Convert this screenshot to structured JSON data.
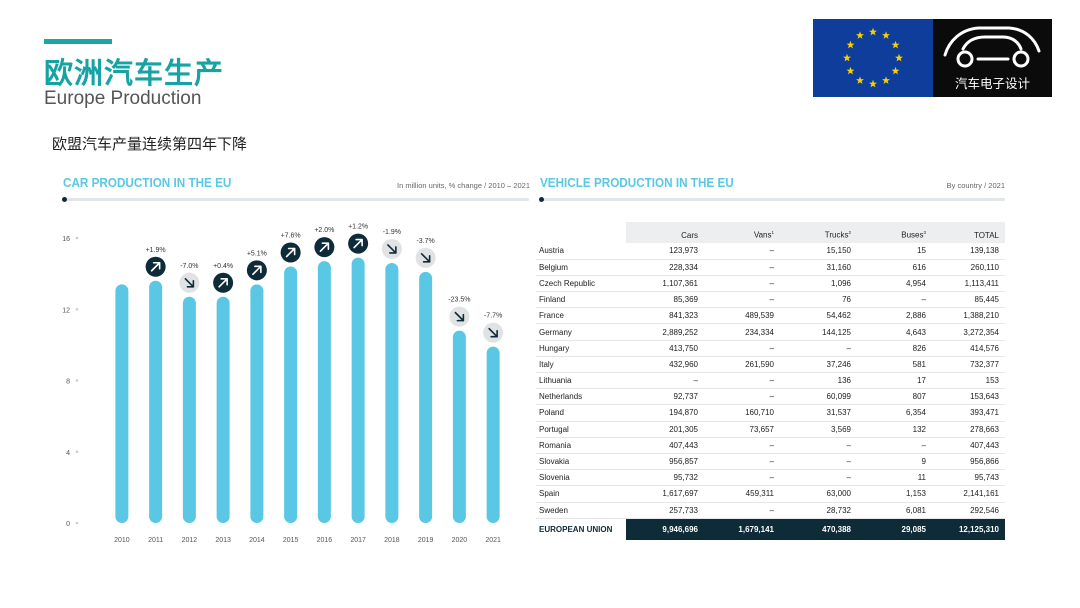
{
  "header": {
    "title_cn": "欧洲汽车生产",
    "title_en": "Europe Production",
    "subtitle_cn": "欧盟汽车产量连续第四年下降"
  },
  "logo": {
    "brand_text": "汽车电子设计",
    "colors": {
      "eu_blue": "#0f3d9c",
      "eu_star": "#f7d000",
      "brand_bg": "#0b0b0b"
    }
  },
  "colors": {
    "accent": "#17a3a3",
    "bar": "#5ac8e4",
    "dark": "#0e2b38",
    "neutral_badge": "#e0e2e4"
  },
  "chart_data": [
    {
      "type": "bar",
      "title": "CAR PRODUCTION IN THE EU",
      "subtitle": "In million units, % change / 2010 – 2021",
      "categories": [
        "2010",
        "2011",
        "2012",
        "2013",
        "2014",
        "2015",
        "2016",
        "2017",
        "2018",
        "2019",
        "2020",
        "2021"
      ],
      "values": [
        13.4,
        13.6,
        12.7,
        12.7,
        13.4,
        14.4,
        14.7,
        14.9,
        14.6,
        14.1,
        10.8,
        9.9
      ],
      "changes": [
        "",
        "+1.9%",
        "-7.0%",
        "+0.4%",
        "+5.1%",
        "+7.6%",
        "+2.0%",
        "+1.2%",
        "-1.9%",
        "-3.7%",
        "-23.5%",
        "-7.7%"
      ],
      "direction": [
        "",
        "up",
        "down",
        "up",
        "up",
        "up",
        "up",
        "up",
        "down",
        "down",
        "down",
        "down"
      ],
      "yticks": [
        0,
        4,
        8,
        12,
        16
      ],
      "ylim": [
        0,
        16
      ],
      "grid": false
    },
    {
      "type": "table",
      "title": "VEHICLE PRODUCTION IN THE EU",
      "subtitle": "By country / 2021",
      "columns": [
        "Cars",
        "Vans",
        "Trucks",
        "Buses",
        "TOTAL"
      ],
      "column_notes": [
        "",
        "1",
        "2",
        "3",
        ""
      ],
      "rows": [
        {
          "country": "Austria",
          "values": [
            "123,973",
            "–",
            "15,150",
            "15",
            "139,138"
          ]
        },
        {
          "country": "Belgium",
          "values": [
            "228,334",
            "–",
            "31,160",
            "616",
            "260,110"
          ]
        },
        {
          "country": "Czech Republic",
          "values": [
            "1,107,361",
            "–",
            "1,096",
            "4,954",
            "1,113,411"
          ]
        },
        {
          "country": "Finland",
          "values": [
            "85,369",
            "–",
            "76",
            "–",
            "85,445"
          ]
        },
        {
          "country": "France",
          "values": [
            "841,323",
            "489,539",
            "54,462",
            "2,886",
            "1,388,210"
          ]
        },
        {
          "country": "Germany",
          "values": [
            "2,889,252",
            "234,334",
            "144,125",
            "4,643",
            "3,272,354"
          ]
        },
        {
          "country": "Hungary",
          "values": [
            "413,750",
            "–",
            "–",
            "826",
            "414,576"
          ]
        },
        {
          "country": "Italy",
          "values": [
            "432,960",
            "261,590",
            "37,246",
            "581",
            "732,377"
          ]
        },
        {
          "country": "Lithuania",
          "values": [
            "–",
            "–",
            "136",
            "17",
            "153"
          ]
        },
        {
          "country": "Netherlands",
          "values": [
            "92,737",
            "–",
            "60,099",
            "807",
            "153,643"
          ]
        },
        {
          "country": "Poland",
          "values": [
            "194,870",
            "160,710",
            "31,537",
            "6,354",
            "393,471"
          ]
        },
        {
          "country": "Portugal",
          "values": [
            "201,305",
            "73,657",
            "3,569",
            "132",
            "278,663"
          ]
        },
        {
          "country": "Romania",
          "values": [
            "407,443",
            "–",
            "–",
            "–",
            "407,443"
          ]
        },
        {
          "country": "Slovakia",
          "values": [
            "956,857",
            "–",
            "–",
            "9",
            "956,866"
          ]
        },
        {
          "country": "Slovenia",
          "values": [
            "95,732",
            "–",
            "–",
            "11",
            "95,743"
          ]
        },
        {
          "country": "Spain",
          "values": [
            "1,617,697",
            "459,311",
            "63,000",
            "1,153",
            "2,141,161"
          ]
        },
        {
          "country": "Sweden",
          "values": [
            "257,733",
            "–",
            "28,732",
            "6,081",
            "292,546"
          ]
        }
      ],
      "total": {
        "country": "EUROPEAN UNION",
        "values": [
          "9,946,696",
          "1,679,141",
          "470,388",
          "29,085",
          "12,125,310"
        ]
      }
    }
  ]
}
